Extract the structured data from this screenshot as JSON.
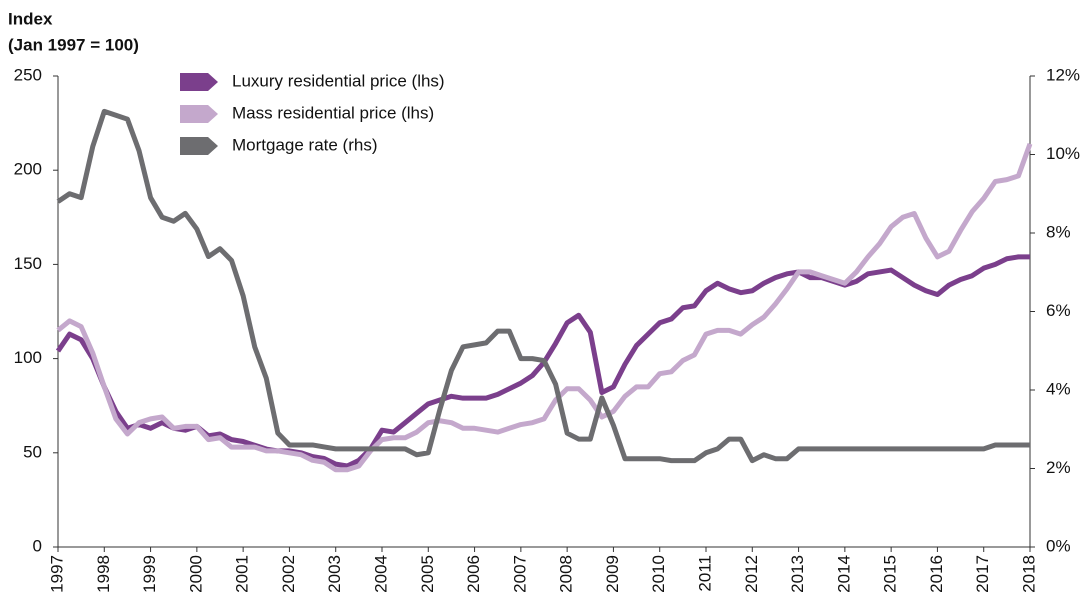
{
  "chart_data": {
    "type": "line",
    "ylabel": [
      "Index",
      "(Jan 1997 = 100)"
    ],
    "x": [
      1997,
      1997.25,
      1997.5,
      1997.75,
      1998,
      1998.25,
      1998.5,
      1998.75,
      1999,
      1999.25,
      1999.5,
      1999.75,
      2000,
      2000.25,
      2000.5,
      2000.75,
      2001,
      2001.25,
      2001.5,
      2001.75,
      2002,
      2002.25,
      2002.5,
      2002.75,
      2003,
      2003.25,
      2003.5,
      2003.75,
      2004,
      2004.25,
      2004.5,
      2004.75,
      2005,
      2005.25,
      2005.5,
      2005.75,
      2006,
      2006.25,
      2006.5,
      2006.75,
      2007,
      2007.25,
      2007.5,
      2007.75,
      2008,
      2008.25,
      2008.5,
      2008.75,
      2009,
      2009.25,
      2009.5,
      2009.75,
      2010,
      2010.25,
      2010.5,
      2010.75,
      2011,
      2011.25,
      2011.5,
      2011.75,
      2012,
      2012.25,
      2012.5,
      2012.75,
      2013,
      2013.25,
      2013.5,
      2013.75,
      2014,
      2014.25,
      2014.5,
      2014.75,
      2015,
      2015.25,
      2015.5,
      2015.75,
      2016,
      2016.25,
      2016.5,
      2016.75,
      2017,
      2017.25,
      2017.5,
      2017.75,
      2018
    ],
    "series": [
      {
        "name": "Luxury residential price (lhs)",
        "color": "#7b3f8c",
        "values": [
          104,
          113,
          110,
          100,
          85,
          72,
          63,
          65,
          63,
          66,
          63,
          62,
          64,
          59,
          60,
          57,
          56,
          54,
          52,
          51,
          51,
          50,
          48,
          47,
          44,
          43,
          46,
          52,
          62,
          61,
          66,
          71,
          76,
          78,
          80,
          79,
          79,
          79,
          81,
          84,
          87,
          91,
          98,
          108,
          119,
          123,
          114,
          82,
          85,
          97,
          107,
          113,
          119,
          121,
          127,
          128,
          136,
          140,
          137,
          135,
          136,
          140,
          143,
          145,
          146,
          143,
          143,
          141,
          139,
          141,
          145,
          146,
          147,
          143,
          139,
          136,
          134,
          139,
          142,
          144,
          148,
          150,
          153,
          154,
          154
        ]
      },
      {
        "name": "Mass residential price (lhs)",
        "color": "#c4a8cc",
        "values": [
          115,
          120,
          117,
          103,
          85,
          68,
          60,
          66,
          68,
          69,
          63,
          64,
          64,
          57,
          58,
          53,
          53,
          53,
          51,
          51,
          50,
          49,
          46,
          45,
          41,
          41,
          43,
          51,
          57,
          58,
          58,
          61,
          66,
          67,
          66,
          63,
          63,
          62,
          61,
          63,
          65,
          66,
          68,
          78,
          84,
          84,
          78,
          69,
          72,
          80,
          85,
          85,
          92,
          93,
          99,
          102,
          113,
          115,
          115,
          113,
          118,
          122,
          129,
          137,
          146,
          146,
          144,
          142,
          140,
          146,
          154,
          161,
          170,
          175,
          177,
          164,
          154,
          157,
          168,
          178,
          185,
          194,
          195,
          197,
          214
        ]
      },
      {
        "name": "Mortgage rate (rhs)",
        "color": "#6d6d70",
        "axis": "y2",
        "values": [
          8.8,
          9.0,
          8.9,
          10.2,
          11.1,
          11.0,
          10.9,
          10.1,
          8.9,
          8.4,
          8.3,
          8.5,
          8.1,
          7.4,
          7.6,
          7.3,
          6.4,
          5.1,
          4.3,
          2.9,
          2.6,
          2.6,
          2.6,
          2.55,
          2.5,
          2.5,
          2.5,
          2.5,
          2.5,
          2.5,
          2.5,
          2.35,
          2.4,
          3.5,
          4.5,
          5.1,
          5.15,
          5.2,
          5.5,
          5.5,
          4.8,
          4.8,
          4.75,
          4.15,
          2.9,
          2.75,
          2.75,
          3.8,
          3.1,
          2.25,
          2.25,
          2.25,
          2.25,
          2.2,
          2.2,
          2.2,
          2.4,
          2.5,
          2.75,
          2.75,
          2.2,
          2.35,
          2.25,
          2.25,
          2.5,
          2.5,
          2.5,
          2.5,
          2.5,
          2.5,
          2.5,
          2.5,
          2.5,
          2.5,
          2.5,
          2.5,
          2.5,
          2.5,
          2.5,
          2.5,
          2.5,
          2.6,
          2.6,
          2.6,
          2.6
        ]
      }
    ],
    "xlim": [
      1997,
      2018
    ],
    "xticks": [
      1997,
      1998,
      1999,
      2000,
      2001,
      2002,
      2003,
      2004,
      2005,
      2006,
      2007,
      2008,
      2009,
      2010,
      2011,
      2012,
      2013,
      2014,
      2015,
      2016,
      2017,
      2018
    ],
    "ylim": [
      0,
      250
    ],
    "yticks": [
      0,
      50,
      100,
      150,
      200,
      250
    ],
    "y2lim": [
      0,
      12
    ],
    "y2ticks": [
      {
        "value": 0,
        "label": "0%"
      },
      {
        "value": 2,
        "label": "2%"
      },
      {
        "value": 4,
        "label": "4%"
      },
      {
        "value": 6,
        "label": "6%"
      },
      {
        "value": 8,
        "label": "8%"
      },
      {
        "value": 10,
        "label": "10%"
      },
      {
        "value": 12,
        "label": "12%"
      }
    ],
    "legend": "top-left",
    "grid": false
  }
}
